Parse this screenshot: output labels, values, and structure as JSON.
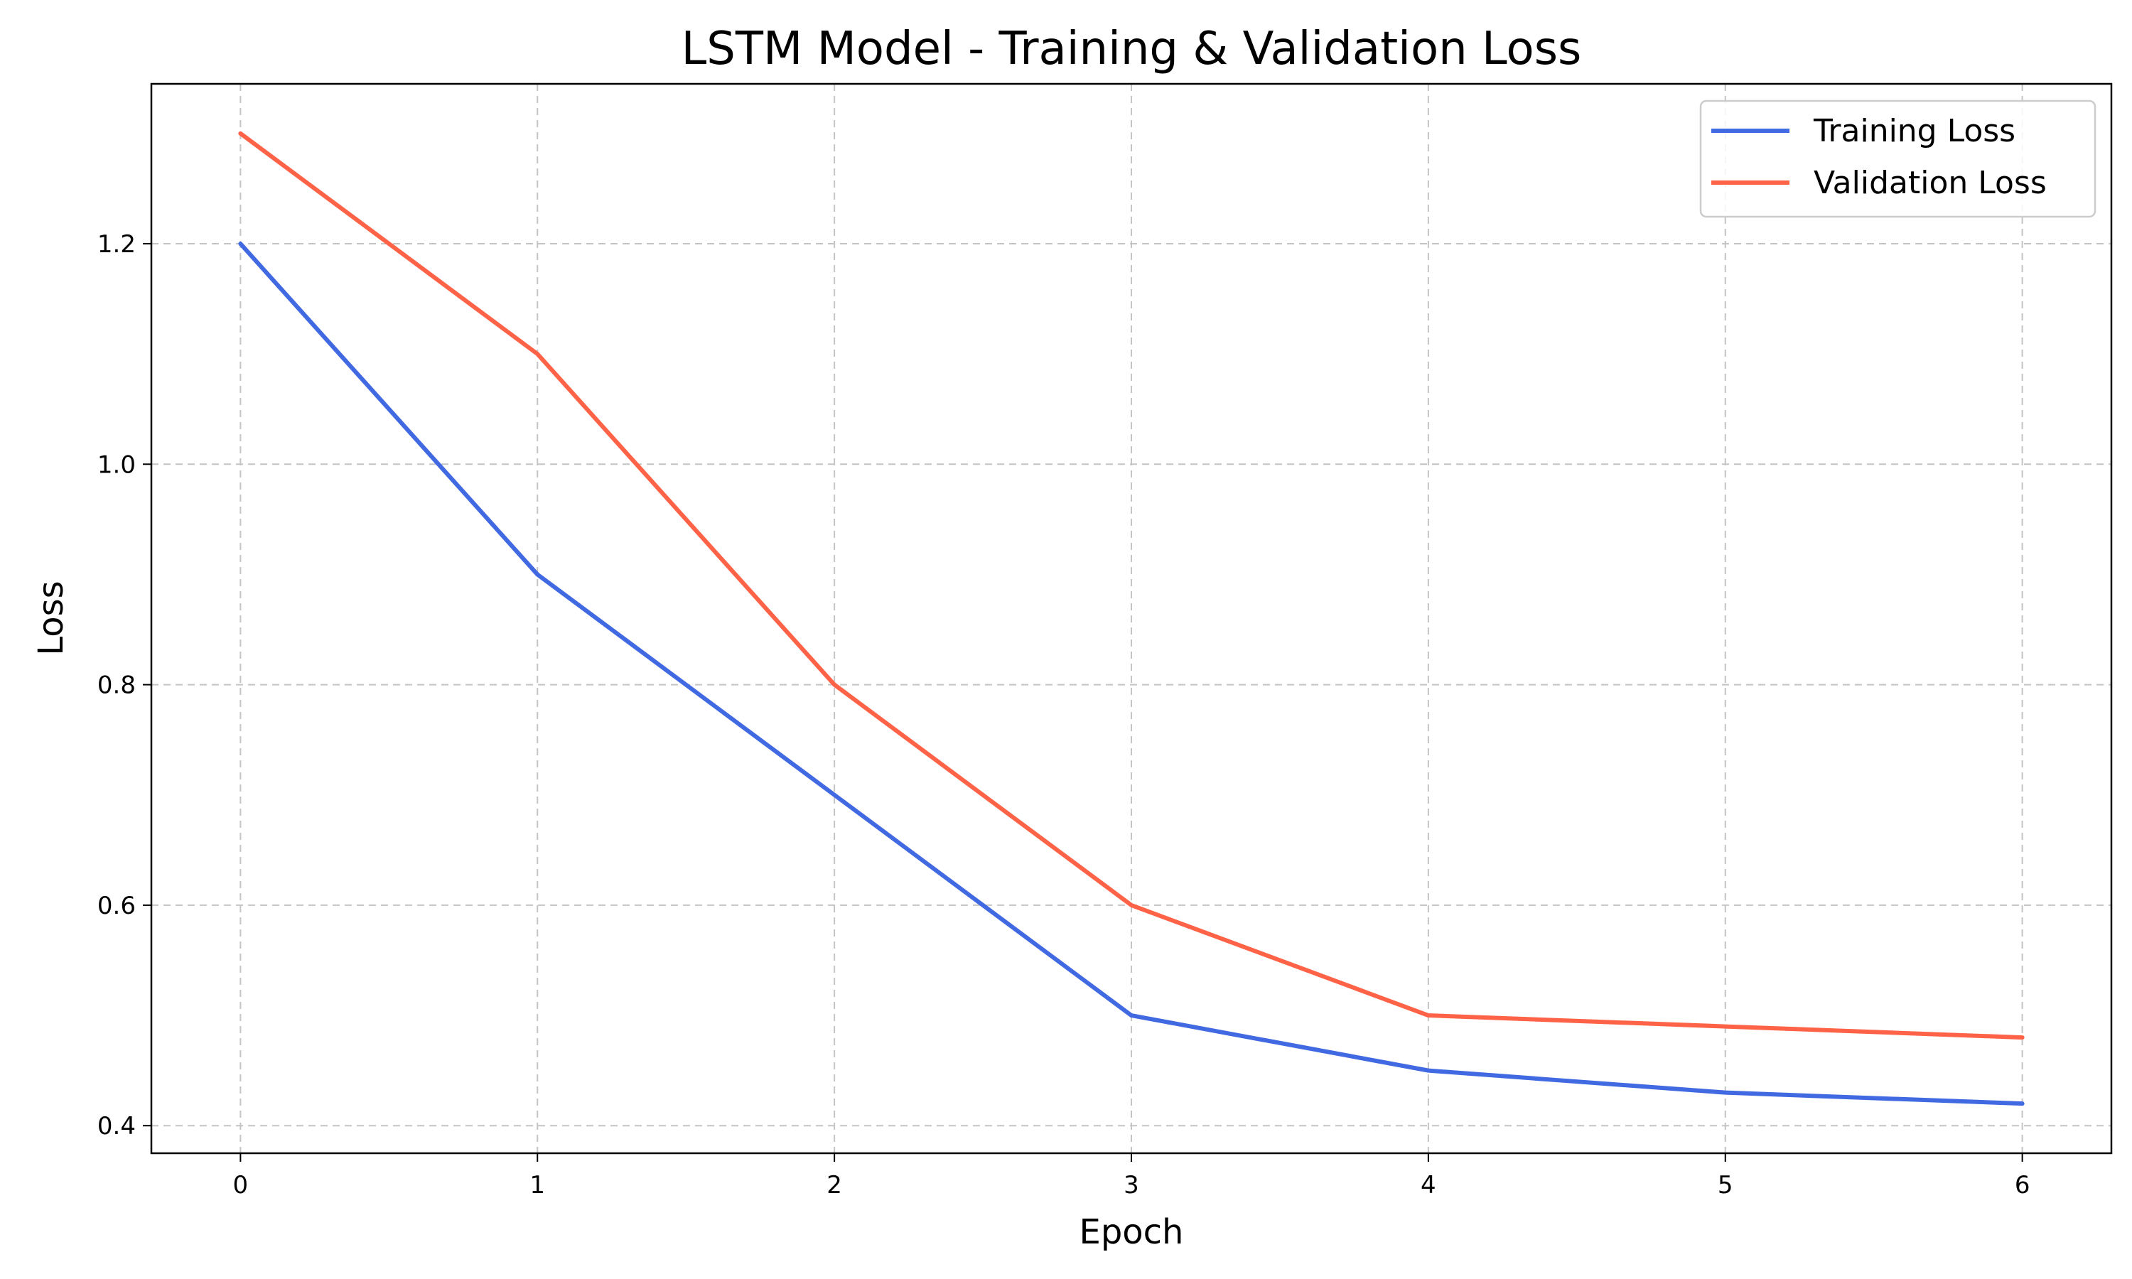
{
  "chart_data": {
    "type": "line",
    "title": "LSTM Model - Training & Validation Loss",
    "xlabel": "Epoch",
    "ylabel": "Loss",
    "x": [
      0,
      1,
      2,
      3,
      4,
      5,
      6
    ],
    "xticks": [
      "0",
      "1",
      "2",
      "3",
      "4",
      "5",
      "6"
    ],
    "yticks": [
      "0.4",
      "0.6",
      "0.8",
      "1.0",
      "1.2"
    ],
    "xlim": [
      -0.3,
      6.3
    ],
    "ylim": [
      0.375,
      1.345
    ],
    "grid": true,
    "legend_position": "top-right",
    "series": [
      {
        "name": "Training Loss",
        "color": "#4169e1",
        "values": [
          1.2,
          0.9,
          0.7,
          0.5,
          0.45,
          0.43,
          0.42
        ]
      },
      {
        "name": "Validation Loss",
        "color": "#ff6347",
        "values": [
          1.3,
          1.1,
          0.8,
          0.6,
          0.5,
          0.49,
          0.48
        ]
      }
    ]
  }
}
